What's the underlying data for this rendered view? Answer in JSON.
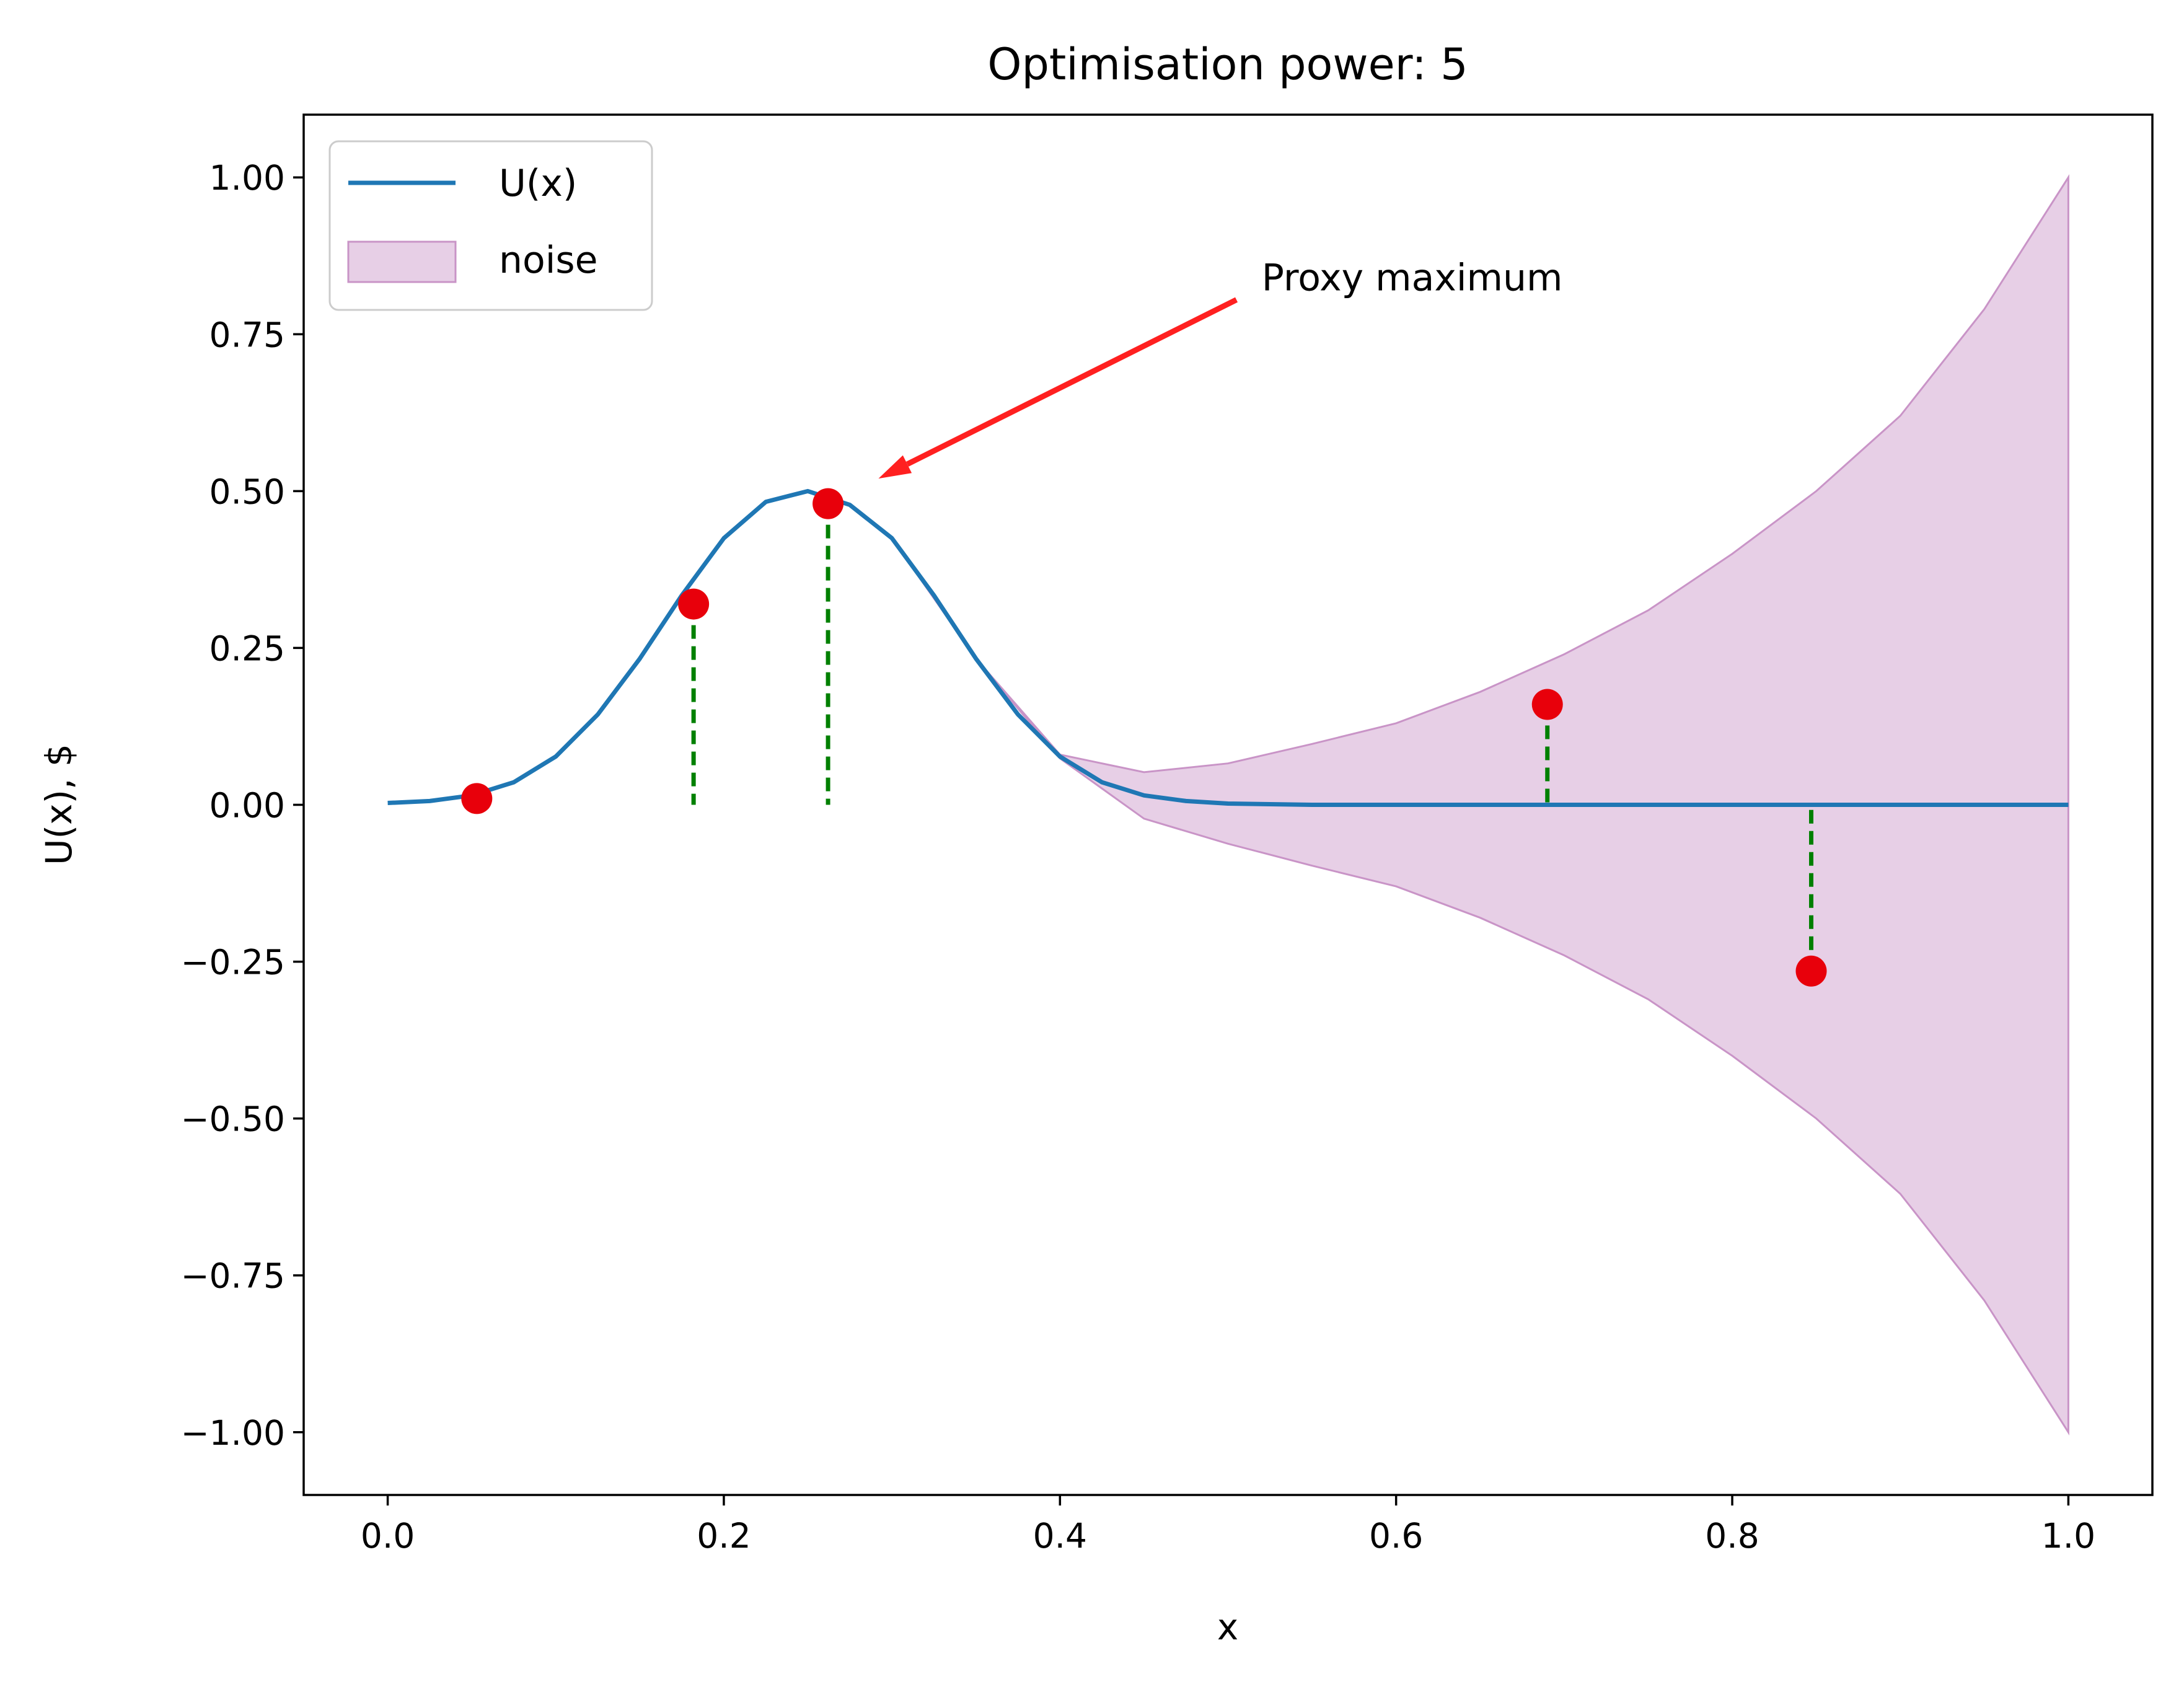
{
  "chart_data": {
    "type": "line",
    "title": "Optimisation power: 5",
    "xlabel": "x",
    "ylabel": "U(x), $",
    "xlim": [
      -0.05,
      1.05
    ],
    "ylim": [
      -1.1,
      1.1
    ],
    "xticks": [
      0.0,
      0.2,
      0.4,
      0.6,
      0.8,
      1.0
    ],
    "xtick_labels": [
      "0.0",
      "0.2",
      "0.4",
      "0.6",
      "0.8",
      "1.0"
    ],
    "yticks": [
      1.0,
      0.75,
      0.5,
      0.25,
      0.0,
      -0.25,
      -0.5,
      -0.75,
      -1.0
    ],
    "ytick_labels": [
      "1.00",
      "0.75",
      "0.50",
      "0.25",
      "0.00",
      "−0.25",
      "−0.50",
      "−0.75",
      "−1.00"
    ],
    "grid": false,
    "legend_position": "top-left",
    "series": [
      {
        "name": "U(x)",
        "kind": "line",
        "color": "#1f77b4",
        "x": [
          0.0,
          0.025,
          0.05,
          0.075,
          0.1,
          0.125,
          0.15,
          0.175,
          0.2,
          0.225,
          0.25,
          0.275,
          0.3,
          0.325,
          0.35,
          0.375,
          0.4,
          0.425,
          0.45,
          0.475,
          0.5,
          0.55,
          0.6,
          0.7,
          0.8,
          0.9,
          1.0
        ],
        "y": [
          0.003,
          0.006,
          0.015,
          0.036,
          0.077,
          0.144,
          0.233,
          0.334,
          0.425,
          0.483,
          0.5,
          0.478,
          0.425,
          0.334,
          0.233,
          0.144,
          0.077,
          0.036,
          0.015,
          0.006,
          0.002,
          0.0,
          0.0,
          0.0,
          0.0,
          0.0,
          0.0
        ]
      },
      {
        "name": "noise",
        "kind": "band",
        "color": "#c994c7",
        "fill_opacity": 0.45,
        "x": [
          0.3,
          0.35,
          0.4,
          0.45,
          0.5,
          0.55,
          0.6,
          0.65,
          0.7,
          0.75,
          0.8,
          0.85,
          0.9,
          0.95,
          1.0
        ],
        "upper": [
          0.425,
          0.233,
          0.08,
          0.052,
          0.066,
          0.097,
          0.13,
          0.18,
          0.24,
          0.31,
          0.4,
          0.5,
          0.62,
          0.79,
          1.0
        ],
        "lower": [
          0.425,
          0.233,
          0.074,
          -0.022,
          -0.062,
          -0.097,
          -0.13,
          -0.18,
          -0.24,
          -0.31,
          -0.4,
          -0.5,
          -0.62,
          -0.79,
          -1.0
        ]
      }
    ],
    "samples": {
      "color": "#e8000b",
      "x": [
        0.053,
        0.182,
        0.262,
        0.69,
        0.847
      ],
      "y": [
        0.01,
        0.32,
        0.48,
        0.16,
        -0.265
      ]
    },
    "residual_lines": {
      "color": "#008000",
      "style": "dashed",
      "segments": [
        {
          "x": 0.182,
          "y_from": 0.32,
          "y_to": 0.0
        },
        {
          "x": 0.262,
          "y_from": 0.48,
          "y_to": 0.0
        },
        {
          "x": 0.69,
          "y_from": 0.16,
          "y_to": 0.0
        },
        {
          "x": 0.847,
          "y_from": -0.265,
          "y_to": 0.0
        }
      ]
    },
    "annotations": [
      {
        "text": "Proxy maximum",
        "text_x": 0.52,
        "text_y": 0.82,
        "arrow_from": [
          0.505,
          0.805
        ],
        "arrow_to": [
          0.292,
          0.52
        ],
        "color": "#ff2020"
      }
    ]
  }
}
